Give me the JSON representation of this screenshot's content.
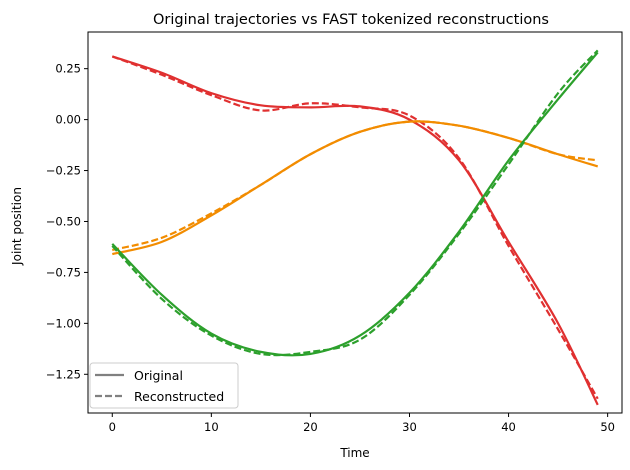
{
  "chart_data": {
    "type": "line",
    "title": "Original trajectories vs FAST tokenized reconstructions",
    "xlabel": "Time",
    "ylabel": "Joint position",
    "xlim": [
      -2.45,
      51.45
    ],
    "ylim": [
      -1.44,
      0.43
    ],
    "xticks": [
      0,
      10,
      20,
      30,
      40,
      50
    ],
    "xtick_labels": [
      "0",
      "10",
      "20",
      "30",
      "40",
      "50"
    ],
    "yticks": [
      0.25,
      0,
      -0.25,
      -0.5,
      -0.75,
      -1.0,
      -1.25
    ],
    "ytick_labels": [
      "0.25",
      "0.00",
      "−0.25",
      "−0.50",
      "−0.75",
      "−1.00",
      "−1.25"
    ],
    "grid": false,
    "legend": {
      "placement": "lower-left",
      "entries": [
        {
          "label": "Original",
          "style": "solid",
          "color": "#808080"
        },
        {
          "label": "Reconstructed",
          "style": "dashed",
          "color": "#808080"
        }
      ]
    },
    "x": [
      0,
      5,
      10,
      15,
      20,
      25,
      30,
      35,
      40,
      45,
      49
    ],
    "series": [
      {
        "name": "joint-1 original",
        "color": "#e03030",
        "style": "solid",
        "values": [
          0.31,
          0.23,
          0.13,
          0.07,
          0.06,
          0.065,
          0.0,
          -0.2,
          -0.6,
          -1.0,
          -1.4
        ]
      },
      {
        "name": "joint-1 reconstructed",
        "color": "#e03030",
        "style": "dashed",
        "values": [
          0.31,
          0.22,
          0.12,
          0.045,
          0.08,
          0.06,
          0.02,
          -0.19,
          -0.62,
          -1.03,
          -1.37
        ]
      },
      {
        "name": "joint-2 original",
        "color": "#f28c00",
        "style": "solid",
        "values": [
          -0.66,
          -0.6,
          -0.47,
          -0.32,
          -0.17,
          -0.06,
          -0.01,
          -0.03,
          -0.09,
          -0.17,
          -0.23
        ]
      },
      {
        "name": "joint-2 reconstructed",
        "color": "#f28c00",
        "style": "dashed",
        "values": [
          -0.64,
          -0.58,
          -0.46,
          -0.32,
          -0.17,
          -0.06,
          -0.01,
          -0.03,
          -0.09,
          -0.17,
          -0.2
        ]
      },
      {
        "name": "joint-3 original",
        "color": "#2ca02c",
        "style": "solid",
        "values": [
          -0.61,
          -0.86,
          -1.05,
          -1.14,
          -1.15,
          -1.06,
          -0.85,
          -0.55,
          -0.2,
          0.1,
          0.33
        ]
      },
      {
        "name": "joint-3 reconstructed",
        "color": "#2ca02c",
        "style": "dashed",
        "values": [
          -0.62,
          -0.88,
          -1.06,
          -1.15,
          -1.14,
          -1.08,
          -0.86,
          -0.56,
          -0.22,
          0.13,
          0.34
        ]
      }
    ]
  }
}
